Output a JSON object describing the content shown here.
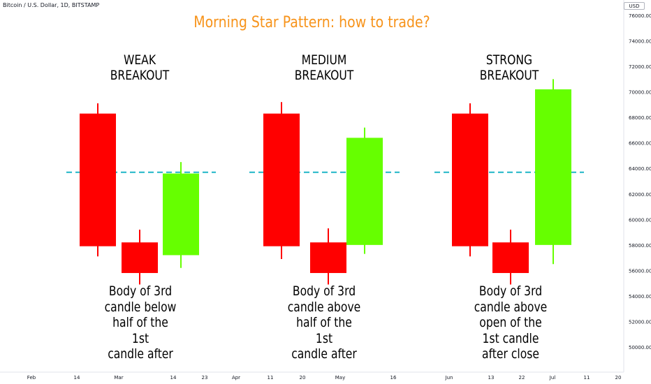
{
  "header": {
    "symbol": "Bitcoin / U.S. Dollar, 1D, BITSTAMP",
    "currency": "USD"
  },
  "chart_data": {
    "type": "candlestick",
    "title": "Morning Star Pattern: how to trade?",
    "ylim": [
      49000,
      76800
    ],
    "y_ticks": [
      "76000.00",
      "74000.00",
      "72000.00",
      "70000.00",
      "68000.00",
      "66000.00",
      "64000.00",
      "62000.00",
      "60000.00",
      "58000.00",
      "56000.00",
      "54000.00",
      "52000.00",
      "50000.00"
    ],
    "x_ticks": [
      "Feb",
      "14",
      "Mar",
      "14",
      "23",
      "Apr",
      "11",
      "20",
      "May",
      "16",
      "Jun",
      "13",
      "22",
      "Jul",
      "11",
      "20"
    ],
    "reference_level": 63700,
    "reference_color": "#1fb5c7",
    "colors": {
      "bearish": "#ff0000",
      "bullish": "#66ff00"
    },
    "groups": [
      {
        "heading": [
          "WEAK",
          "BREAKOUT"
        ],
        "caption": [
          "Body of 3rd",
          "candle below",
          "half of the",
          "1st",
          "candle after"
        ],
        "candles": [
          {
            "open": 68300,
            "close": 57900,
            "high": 69100,
            "low": 57100
          },
          {
            "open": 58200,
            "close": 55800,
            "high": 59200,
            "low": 54900
          },
          {
            "open": 57200,
            "close": 63600,
            "high": 64500,
            "low": 56200
          }
        ]
      },
      {
        "heading": [
          "MEDIUM",
          "BREAKOUT"
        ],
        "caption": [
          "Body of 3rd",
          "candle above",
          "half of the",
          "1st",
          "candle after"
        ],
        "candles": [
          {
            "open": 68300,
            "close": 57900,
            "high": 69200,
            "low": 56900
          },
          {
            "open": 58200,
            "close": 55800,
            "high": 59300,
            "low": 54900
          },
          {
            "open": 58000,
            "close": 66400,
            "high": 67200,
            "low": 57300
          }
        ]
      },
      {
        "heading": [
          "STRONG",
          "BREAKOUT"
        ],
        "caption": [
          "Body of 3rd",
          "candle above",
          "open of the",
          "1st candle",
          "after close"
        ],
        "candles": [
          {
            "open": 68300,
            "close": 57900,
            "high": 69100,
            "low": 57100
          },
          {
            "open": 58200,
            "close": 55800,
            "high": 59200,
            "low": 54900
          },
          {
            "open": 58000,
            "close": 70200,
            "high": 71000,
            "low": 56500
          }
        ]
      }
    ]
  }
}
